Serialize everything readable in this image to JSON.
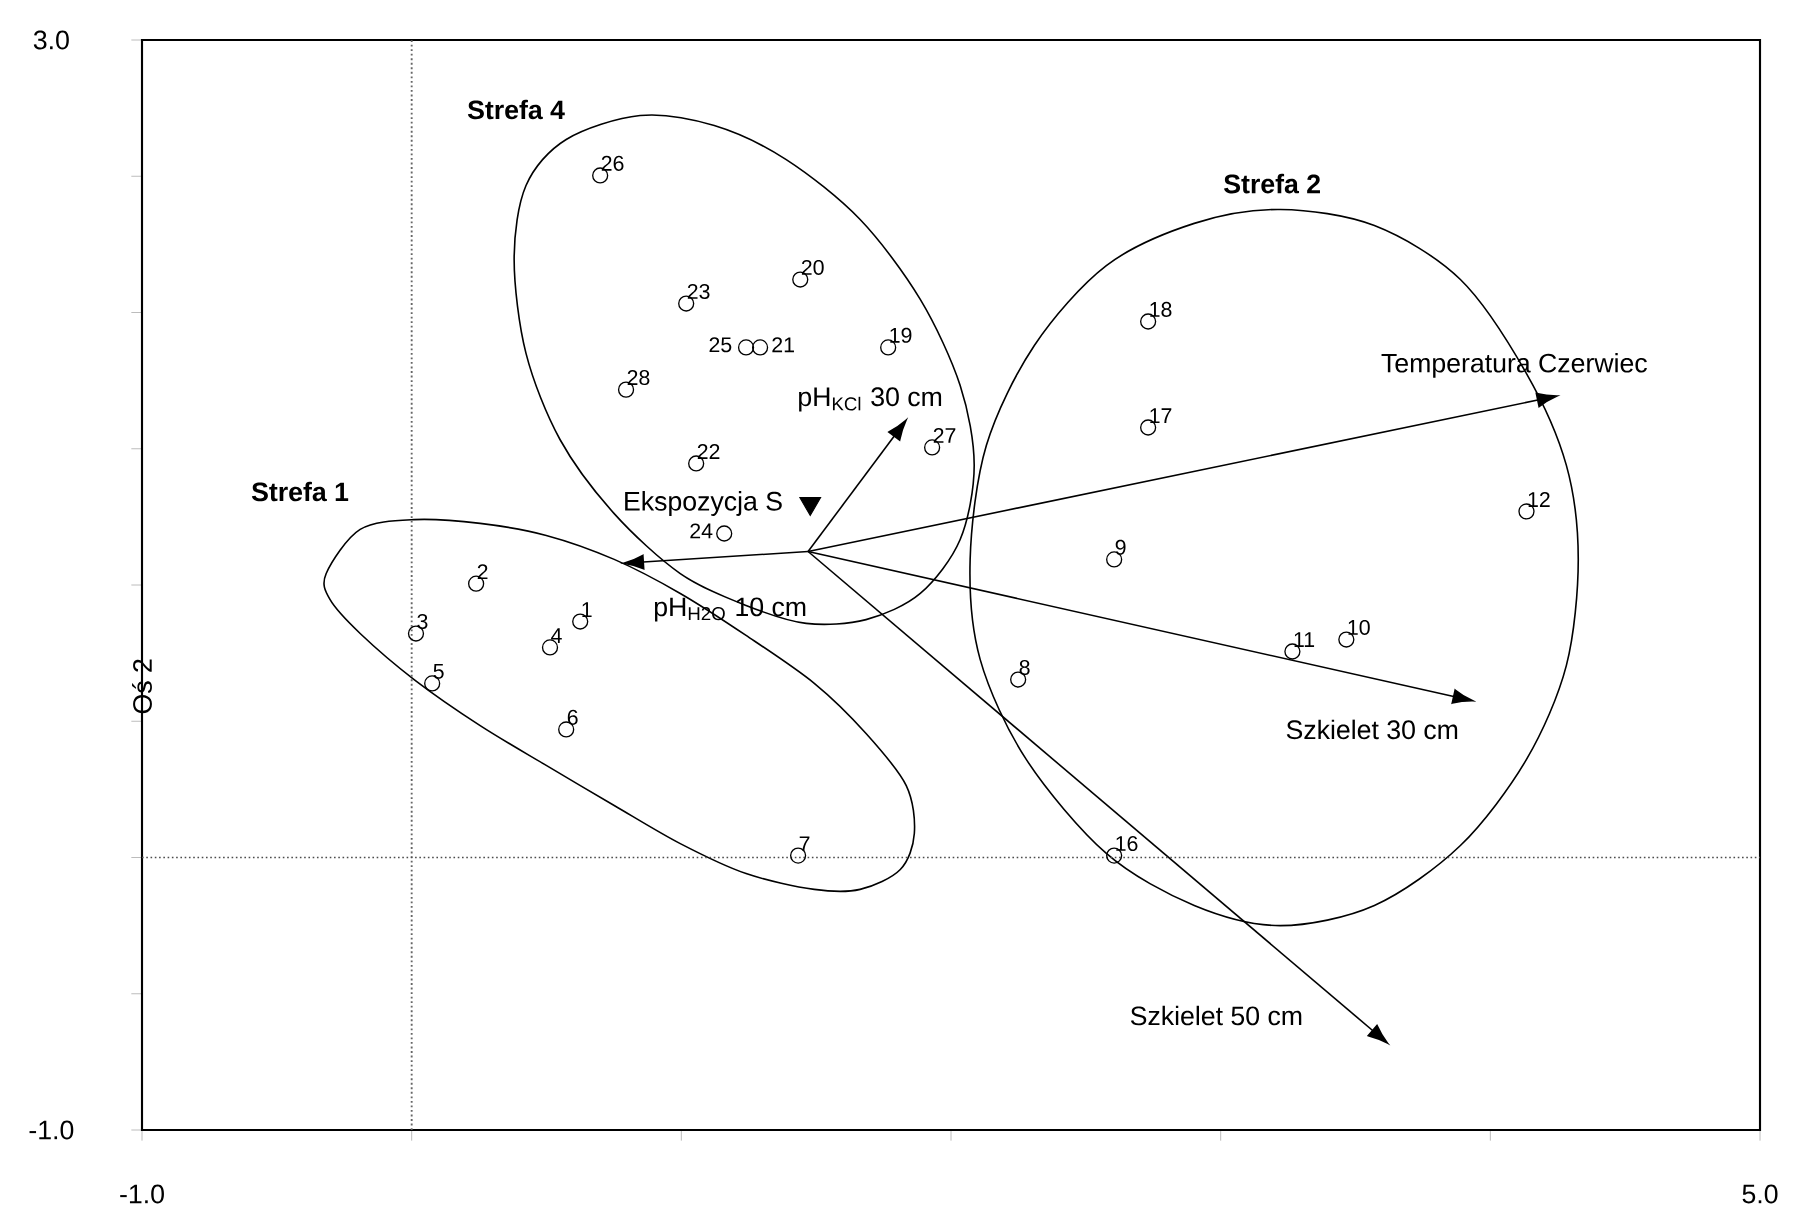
{
  "chart_data": {
    "type": "scatter",
    "ylabel": "Oś 2",
    "xlim": [
      -1,
      5
    ],
    "ylim": [
      -1,
      3
    ],
    "xticks": [
      {
        "value": -1,
        "label": "-1.0"
      },
      {
        "value": 0,
        "label": null
      },
      {
        "value": 1,
        "label": null
      },
      {
        "value": 2,
        "label": null
      },
      {
        "value": 3,
        "label": null
      },
      {
        "value": 4,
        "label": null
      },
      {
        "value": 5,
        "label": "5.0"
      }
    ],
    "yticks": [
      {
        "value": -1,
        "label": "-1.0"
      },
      {
        "value": -0.5,
        "label": null
      },
      {
        "value": 0,
        "label": null
      },
      {
        "value": 0.5,
        "label": null
      },
      {
        "value": 1,
        "label": null
      },
      {
        "value": 1.5,
        "label": null
      },
      {
        "value": 2,
        "label": null
      },
      {
        "value": 2.5,
        "label": null
      },
      {
        "value": 3,
        "label": "3.0"
      }
    ],
    "ref_lines": [
      {
        "axis": "x",
        "value": 0,
        "line_style": "dotted"
      },
      {
        "axis": "y",
        "value": 0,
        "line_style": "dotted"
      }
    ],
    "series": [
      {
        "marker": "circle",
        "color": "#000000",
        "x": [
          0.625,
          0.239,
          0.016,
          0.513,
          0.076,
          0.573,
          1.433,
          2.249,
          2.605,
          3.466,
          3.266,
          4.134,
          2.605,
          2.731,
          2.731,
          1.767,
          1.441,
          1.292,
          1.055,
          1.018,
          1.159,
          1.24,
          0.699,
          1.93,
          0.795
        ],
        "values": [
          0.866,
          1.005,
          0.822,
          0.771,
          0.639,
          0.47,
          0.007,
          0.653,
          1.094,
          0.8,
          0.756,
          1.27,
          0.007,
          1.578,
          1.967,
          1.872,
          2.121,
          1.872,
          1.446,
          2.033,
          1.189,
          1.872,
          2.503,
          1.505,
          1.717
        ]
      },
      {
        "type": "scatter",
        "marker": "triangle",
        "name": "Ekspozycja S",
        "color": "#000000",
        "x": [
          1.478
        ],
        "values": [
          1.299
        ]
      }
    ],
    "annotations": [
      {
        "text": "1",
        "x": 0.625,
        "y": 0.866
      },
      {
        "text": "2",
        "x": 0.239,
        "y": 1.005
      },
      {
        "text": "3",
        "x": 0.016,
        "y": 0.822
      },
      {
        "text": "4",
        "x": 0.513,
        "y": 0.771
      },
      {
        "text": "5",
        "x": 0.076,
        "y": 0.639
      },
      {
        "text": "6",
        "x": 0.573,
        "y": 0.47
      },
      {
        "text": "7",
        "x": 1.433,
        "y": 0.007
      },
      {
        "text": "8",
        "x": 2.249,
        "y": 0.653
      },
      {
        "text": "9",
        "x": 2.605,
        "y": 1.094
      },
      {
        "text": "10",
        "x": 3.466,
        "y": 0.8
      },
      {
        "text": "11",
        "x": 3.266,
        "y": 0.756
      },
      {
        "text": "12",
        "x": 4.134,
        "y": 1.27
      },
      {
        "text": "16",
        "x": 2.605,
        "y": 0.007
      },
      {
        "text": "17",
        "x": 2.731,
        "y": 1.578
      },
      {
        "text": "18",
        "x": 2.731,
        "y": 1.967
      },
      {
        "text": "19",
        "x": 1.767,
        "y": 1.872
      },
      {
        "text": "20",
        "x": 1.441,
        "y": 2.121
      },
      {
        "text": "21",
        "x": 1.292,
        "y": 1.872
      },
      {
        "text": "22",
        "x": 1.055,
        "y": 1.446
      },
      {
        "text": "23",
        "x": 1.018,
        "y": 2.033
      },
      {
        "text": "24",
        "x": 1.159,
        "y": 1.189
      },
      {
        "text": "25",
        "x": 1.24,
        "y": 1.872
      },
      {
        "text": "26",
        "x": 0.699,
        "y": 2.503
      },
      {
        "text": "27",
        "x": 1.93,
        "y": 1.505
      },
      {
        "text": "28",
        "x": 0.795,
        "y": 1.717
      },
      "**Strefa 1**",
      "**Strefa 4**",
      "**Strefa 2**",
      "Temperatura Czerwiec",
      "Szkielet 30 cm",
      "Szkielet 50 cm",
      "pH$_{KCl}$ 30 cm",
      "pH$_{H2O}$ 10 cm"
    ]
  }
}
